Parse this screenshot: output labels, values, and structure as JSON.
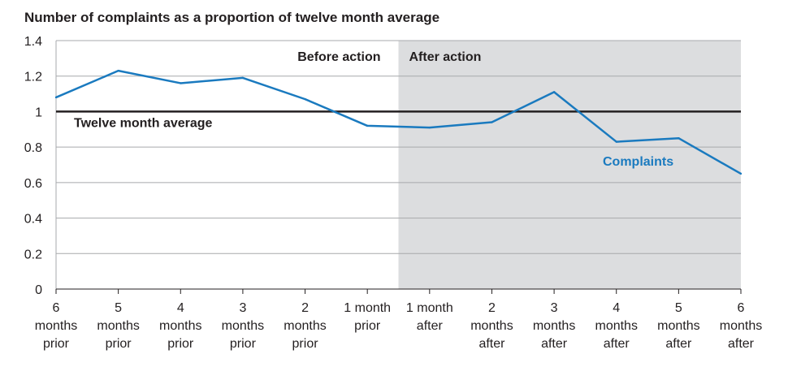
{
  "chart_data": {
    "type": "line",
    "title": "Number of complaints as a proportion of twelve month average",
    "categories": [
      [
        "6",
        "months",
        "prior"
      ],
      [
        "5",
        "months",
        "prior"
      ],
      [
        "4",
        "months",
        "prior"
      ],
      [
        "3",
        "months",
        "prior"
      ],
      [
        "2",
        "months",
        "prior"
      ],
      [
        "1 month",
        "prior"
      ],
      [
        "1 month",
        "after"
      ],
      [
        "2",
        "months",
        "after"
      ],
      [
        "3",
        "months",
        "after"
      ],
      [
        "4",
        "months",
        "after"
      ],
      [
        "5",
        "months",
        "after"
      ],
      [
        "6",
        "months",
        "after"
      ]
    ],
    "series": [
      {
        "name": "Complaints",
        "color": "#1a7abf",
        "values": [
          1.08,
          1.23,
          1.16,
          1.19,
          1.07,
          0.92,
          0.91,
          0.94,
          1.11,
          0.83,
          0.85,
          0.65
        ]
      }
    ],
    "reference_line": {
      "label": "Twelve month average",
      "value": 1.0,
      "color": "#231f20"
    },
    "regions": [
      {
        "label": "Before action",
        "from": 0,
        "to": 5.5,
        "fill": "#ffffff"
      },
      {
        "label": "After action",
        "from": 5.5,
        "to": 11,
        "fill": "#dcdddf"
      }
    ],
    "ylim": [
      0,
      1.4
    ],
    "yticks": [
      0,
      0.2,
      0.4,
      0.6,
      0.8,
      1,
      1.2,
      1.4
    ],
    "ytick_labels": [
      "0",
      "0.2",
      "0.4",
      "0.6",
      "0.8",
      "1",
      "1.2",
      "1.4"
    ],
    "grid": true,
    "xlabel": "",
    "ylabel": ""
  }
}
